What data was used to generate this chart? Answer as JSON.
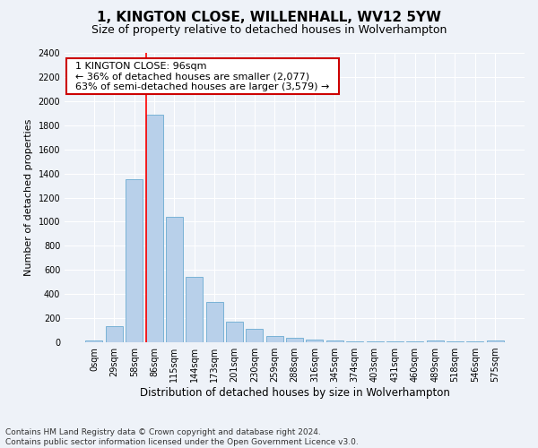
{
  "title": "1, KINGTON CLOSE, WILLENHALL, WV12 5YW",
  "subtitle": "Size of property relative to detached houses in Wolverhampton",
  "xlabel": "Distribution of detached houses by size in Wolverhampton",
  "ylabel": "Number of detached properties",
  "footer_line1": "Contains HM Land Registry data © Crown copyright and database right 2024.",
  "footer_line2": "Contains public sector information licensed under the Open Government Licence v3.0.",
  "categories": [
    "0sqm",
    "29sqm",
    "58sqm",
    "86sqm",
    "115sqm",
    "144sqm",
    "173sqm",
    "201sqm",
    "230sqm",
    "259sqm",
    "288sqm",
    "316sqm",
    "345sqm",
    "374sqm",
    "403sqm",
    "431sqm",
    "460sqm",
    "489sqm",
    "518sqm",
    "546sqm",
    "575sqm"
  ],
  "values": [
    15,
    135,
    1350,
    1890,
    1040,
    540,
    335,
    170,
    110,
    55,
    35,
    20,
    15,
    5,
    5,
    5,
    5,
    15,
    5,
    5,
    15
  ],
  "bar_color": "#b8d0ea",
  "bar_edge_color": "#6aabd2",
  "property_line_label": "1 KINGTON CLOSE: 96sqm",
  "annotation_line1": "← 36% of detached houses are smaller (2,077)",
  "annotation_line2": "63% of semi-detached houses are larger (3,579) →",
  "annotation_box_color": "#ffffff",
  "annotation_box_edge_color": "#cc0000",
  "ylim": [
    0,
    2400
  ],
  "yticks": [
    0,
    200,
    400,
    600,
    800,
    1000,
    1200,
    1400,
    1600,
    1800,
    2000,
    2200,
    2400
  ],
  "bg_color": "#eef2f8",
  "grid_color": "#ffffff",
  "title_fontsize": 11,
  "subtitle_fontsize": 9,
  "xlabel_fontsize": 8.5,
  "ylabel_fontsize": 8,
  "tick_fontsize": 7,
  "annotation_fontsize": 8,
  "footer_fontsize": 6.5
}
